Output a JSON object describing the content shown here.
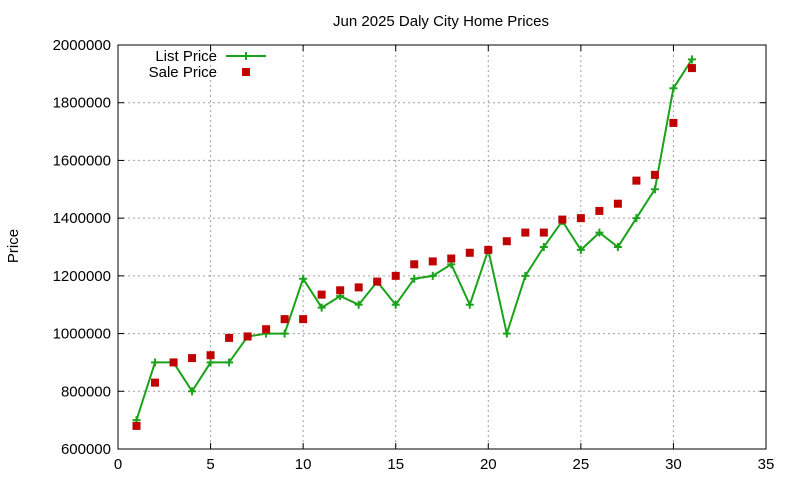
{
  "chart_data": {
    "type": "line",
    "title": "Jun 2025 Daly City Home Prices",
    "xlabel": "",
    "ylabel": "Price",
    "xlim": [
      0,
      35
    ],
    "ylim": [
      600000,
      2000000
    ],
    "x_ticks": [
      "0",
      "5",
      "10",
      "15",
      "20",
      "25",
      "30",
      "35"
    ],
    "y_ticks": [
      "600000",
      "800000",
      "1000000",
      "1200000",
      "1400000",
      "1600000",
      "1800000",
      "2000000"
    ],
    "grid": true,
    "legend_position": "top-left",
    "series": [
      {
        "name": "List Price",
        "style": "line-with-plus-markers",
        "color": "#1aa31a",
        "x": [
          1,
          2,
          3,
          4,
          5,
          6,
          7,
          8,
          9,
          10,
          11,
          12,
          13,
          14,
          15,
          16,
          17,
          18,
          19,
          20,
          21,
          22,
          23,
          24,
          25,
          26,
          27,
          28,
          29,
          30,
          31
        ],
        "values": [
          700000,
          900000,
          900000,
          800000,
          900000,
          900000,
          990000,
          1000000,
          1000000,
          1190000,
          1090000,
          1130000,
          1100000,
          1180000,
          1100000,
          1190000,
          1200000,
          1240000,
          1100000,
          1290000,
          1000000,
          1200000,
          1300000,
          1390000,
          1290000,
          1350000,
          1300000,
          1400000,
          1500000,
          1850000,
          1950000
        ]
      },
      {
        "name": "Sale Price",
        "style": "square-markers",
        "color": "#c00000",
        "x": [
          1,
          2,
          3,
          4,
          5,
          6,
          7,
          8,
          9,
          10,
          11,
          12,
          13,
          14,
          15,
          16,
          17,
          18,
          19,
          20,
          21,
          22,
          23,
          24,
          25,
          26,
          27,
          28,
          29,
          30,
          31
        ],
        "values": [
          680000,
          830000,
          900000,
          915000,
          925000,
          985000,
          990000,
          1015000,
          1050000,
          1050000,
          1135000,
          1150000,
          1160000,
          1180000,
          1200000,
          1240000,
          1250000,
          1260000,
          1280000,
          1290000,
          1320000,
          1350000,
          1350000,
          1395000,
          1400000,
          1425000,
          1450000,
          1530000,
          1550000,
          1730000,
          1920000
        ]
      }
    ]
  }
}
